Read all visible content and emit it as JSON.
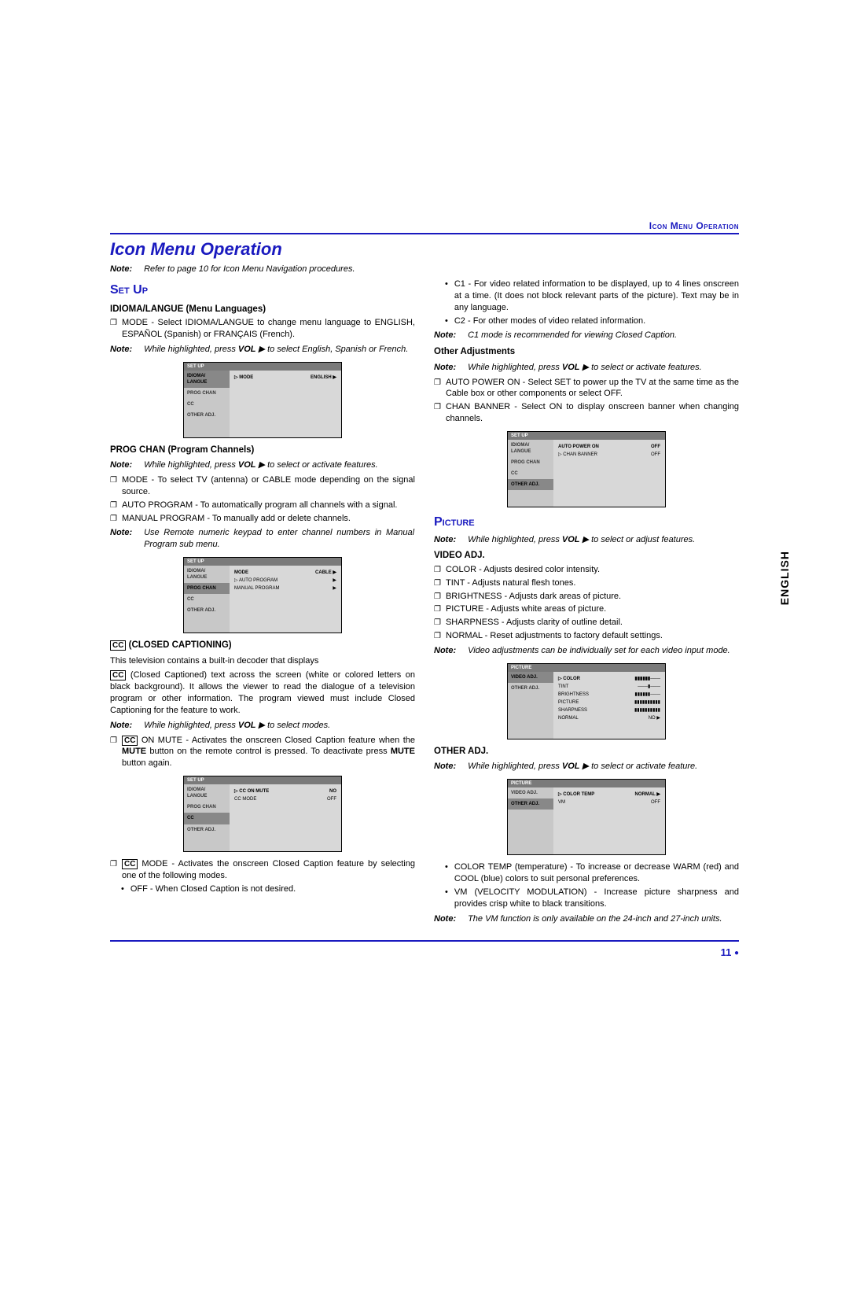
{
  "header": {
    "runningTitle": "Icon Menu Operation"
  },
  "title": "Icon Menu Operation",
  "topNote": {
    "label": "Note:",
    "text": "Refer to page 10 for Icon Menu Navigation procedures."
  },
  "sideTab": "ENGLISH",
  "pageNumber": "11",
  "left": {
    "setup": "Set Up",
    "langHeading": "IDIOMA/LANGUE (Menu Languages)",
    "langBullet": "MODE - Select IDIOMA/LANGUE to change menu language to ENGLISH, ESPAÑOL (Spanish) or FRANÇAIS (French).",
    "langNote": {
      "label": "Note:",
      "text": "While highlighted, press VOL ▶ to select English, Spanish or French."
    },
    "progHeading": "PROG CHAN (Program Channels)",
    "progNote": {
      "label": "Note:",
      "text": "While highlighted, press VOL ▶ to select or activate features."
    },
    "progBullets": [
      "MODE - To select TV (antenna) or CABLE mode depending on the signal source.",
      "AUTO PROGRAM - To automatically program all channels with a signal.",
      "MANUAL PROGRAM - To manually add or delete channels."
    ],
    "progNote2": {
      "label": "Note:",
      "text": "Use Remote numeric keypad to enter channel numbers in Manual Program sub menu."
    },
    "ccHeading": " (CLOSED CAPTIONING)",
    "ccPara1": "This television contains a built-in decoder that displays",
    "ccPara2": " (Closed Captioned) text across the screen (white or colored letters on black background). It allows the viewer to read the dialogue of a television program or other information. The program viewed must include Closed Captioning for the feature to work.",
    "ccNote": {
      "label": "Note:",
      "text": "While highlighted, press VOL ▶ to select modes."
    },
    "ccBullet1Pre": " ON MUTE - Activates the onscreen Closed Caption feature when the ",
    "ccBullet1Bold": "MUTE",
    "ccBullet1Mid": " button on the remote control is pressed. To deactivate press ",
    "ccBullet1Post": " button again.",
    "ccBullet2": " MODE - Activates the onscreen Closed Caption feature by selecting one of the following modes.",
    "ccSub": "OFF - When Closed Caption is not desired."
  },
  "right": {
    "c1": "C1 - For video related information to be displayed, up to 4 lines onscreen at a time. (It does not block relevant parts of the picture). Text may be in any language.",
    "c2": "C2 - For other modes of video related information.",
    "c1Note": {
      "label": "Note:",
      "text": "C1 mode is recommended for viewing Closed Caption."
    },
    "otherAdjHeading": "Other Adjustments",
    "otherAdjNote": {
      "label": "Note:",
      "text": "While highlighted, press VOL ▶ to select or activate features."
    },
    "otherAdjBullets": [
      "AUTO POWER ON - Select SET to power up the TV at the same time as the Cable box or other components or select OFF.",
      "CHAN BANNER - Select ON to display onscreen banner when changing channels."
    ],
    "picture": "Picture",
    "picNote": {
      "label": "Note:",
      "text": "While highlighted, press VOL ▶ to select or adjust features."
    },
    "videoAdjHeading": "VIDEO ADJ.",
    "videoBullets": [
      "COLOR - Adjusts desired color intensity.",
      "TINT - Adjusts natural flesh tones.",
      "BRIGHTNESS - Adjusts dark areas of picture.",
      "PICTURE - Adjusts white areas of picture.",
      "SHARPNESS - Adjusts clarity of outline detail.",
      "NORMAL - Reset adjustments to factory default settings."
    ],
    "videoNote": {
      "label": "Note:",
      "text": "Video adjustments can be individually set for each video input mode."
    },
    "otherAdj2Heading": "OTHER ADJ.",
    "otherAdj2Note": {
      "label": "Note:",
      "text": "While highlighted, press VOL ▶ to select or activate feature."
    },
    "otherAdj2Sub": [
      "COLOR TEMP (temperature) - To increase or decrease WARM (red) and COOL (blue) colors to suit personal preferences.",
      "VM (VELOCITY MODULATION) - Increase picture sharpness and provides crisp white to black transitions."
    ],
    "vmNote": {
      "label": "Note:",
      "text": "The VM function is only available on the 24-inch and 27-inch units."
    }
  },
  "screens": {
    "s1": {
      "top": "SET UP",
      "side": [
        "IDIOMA/ LANGUE",
        "PROG CHAN",
        "CC",
        "OTHER ADJ."
      ],
      "activeIdx": 0,
      "rows": [
        [
          "▷ MODE",
          "ENGLISH ▶"
        ]
      ]
    },
    "s2": {
      "top": "SET UP",
      "side": [
        "IDIOMA/ LANGUE",
        "PROG CHAN",
        "CC",
        "OTHER ADJ."
      ],
      "activeIdx": 1,
      "rows": [
        [
          "MODE",
          "CABLE ▶"
        ],
        [
          "▷ AUTO PROGRAM",
          "▶"
        ],
        [
          "MANUAL PROGRAM",
          "▶"
        ]
      ]
    },
    "s3": {
      "top": "SET UP",
      "side": [
        "IDIOMA/ LANGUE",
        "PROG CHAN",
        "CC",
        "OTHER ADJ."
      ],
      "activeIdx": 2,
      "rows": [
        [
          "▷ CC ON MUTE",
          "NO"
        ],
        [
          "CC MODE",
          "OFF"
        ]
      ]
    },
    "s4": {
      "top": "SET UP",
      "side": [
        "IDIOMA/ LANGUE",
        "PROG CHAN",
        "CC",
        "OTHER ADJ."
      ],
      "activeIdx": 3,
      "rows": [
        [
          "AUTO POWER ON",
          "OFF"
        ],
        [
          "▷ CHAN BANNER",
          "OFF"
        ]
      ]
    },
    "s5": {
      "top": "PICTURE",
      "side": [
        "VIDEO ADJ.",
        "OTHER ADJ."
      ],
      "activeIdx": 0,
      "rows": [
        [
          "▷ COLOR",
          "▮▮▮▮▮▮───"
        ],
        [
          "TINT",
          "───▮───"
        ],
        [
          "BRIGHTNESS",
          "▮▮▮▮▮▮───"
        ],
        [
          "PICTURE",
          "▮▮▮▮▮▮▮▮▮▮"
        ],
        [
          "SHARPNESS",
          "▮▮▮▮▮▮▮▮▮▮"
        ],
        [
          "NORMAL",
          "NO ▶"
        ]
      ]
    },
    "s6": {
      "top": "PICTURE",
      "side": [
        "VIDEO ADJ.",
        "OTHER ADJ."
      ],
      "activeIdx": 1,
      "rows": [
        [
          "▷ COLOR TEMP",
          "NORMAL ▶"
        ],
        [
          "VM",
          "OFF"
        ]
      ]
    }
  }
}
